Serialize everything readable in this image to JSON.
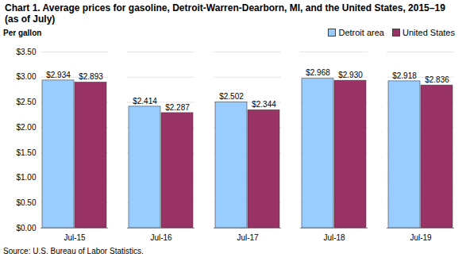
{
  "chart_data": {
    "type": "bar",
    "title": "Chart 1. Average prices for gasoline, Detroit-Warren-Dearborn, MI, and the United States, 2015–19 (as of July)",
    "y_label": "Per gallon",
    "caption": "Source: U.S. Bureau of Labor Statistics.",
    "categories": [
      "Jul-15",
      "Jul-16",
      "Jul-17",
      "Jul-18",
      "Jul-19"
    ],
    "series": [
      {
        "name": "Detroit area",
        "color": "#99ccff",
        "values": [
          2.934,
          2.414,
          2.502,
          2.968,
          2.918
        ],
        "value_labels": [
          "$2.934",
          "$2.414",
          "$2.502",
          "$2.968",
          "$2.918"
        ]
      },
      {
        "name": "United States",
        "color": "#993366",
        "values": [
          2.893,
          2.287,
          2.344,
          2.93,
          2.836
        ],
        "value_labels": [
          "$2.893",
          "$2.287",
          "$2.344",
          "$2.930",
          "$2.836"
        ]
      }
    ],
    "ylim": [
      0,
      3.5
    ],
    "yticks": [
      {
        "value": 0,
        "label": "$0.00"
      },
      {
        "value": 0.5,
        "label": "$0.50"
      },
      {
        "value": 1,
        "label": "$1.00"
      },
      {
        "value": 1.5,
        "label": "$1.50"
      },
      {
        "value": 2,
        "label": "$2.00"
      },
      {
        "value": 2.5,
        "label": "$2.50"
      },
      {
        "value": 3,
        "label": "$3.00"
      },
      {
        "value": 3.5,
        "label": "$3.50"
      }
    ],
    "grid": true,
    "legend": "top-right",
    "data_labels": true
  }
}
